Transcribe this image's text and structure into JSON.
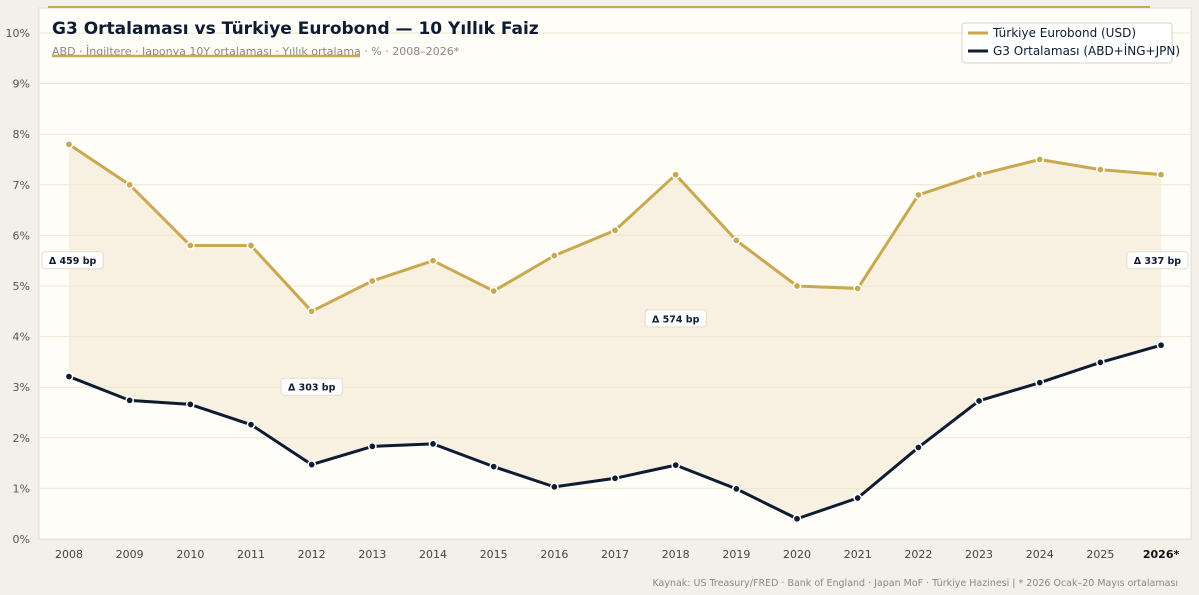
{
  "chart_data": {
    "type": "line",
    "title": "G3 Ortalaması vs Türkiye Eurobond — 10 Yıllık Faiz",
    "subtitle": "ABD · İngiltere · Japonya 10Y ortalaması  ·  Yıllık ortalama  ·  %  ·  2008–2026*",
    "source": "Kaynak: US Treasury/FRED · Bank of England · Japan MoF · Türkiye Hazinesi  |  * 2026 Ocak–20 Mayıs ortalaması",
    "categories": [
      "2008",
      "2009",
      "2010",
      "2011",
      "2012",
      "2013",
      "2014",
      "2015",
      "2016",
      "2017",
      "2018",
      "2019",
      "2020",
      "2021",
      "2022",
      "2023",
      "2024",
      "2025",
      "2026*"
    ],
    "yticks": [
      "0%",
      "1%",
      "2%",
      "3%",
      "4%",
      "5%",
      "6%",
      "7%",
      "8%",
      "9%",
      "10%"
    ],
    "ylim": [
      0,
      10
    ],
    "legend_position": "top-right",
    "grid": true,
    "series": [
      {
        "name": "Türkiye Eurobond (USD)",
        "color": "#c9a94f",
        "values": [
          7.8,
          7.0,
          5.8,
          5.8,
          4.5,
          5.1,
          5.5,
          4.9,
          5.6,
          6.1,
          7.2,
          5.9,
          5.0,
          4.95,
          6.8,
          7.2,
          7.5,
          7.3,
          7.2
        ]
      },
      {
        "name": "G3 Ortalaması (ABD+İNG+JPN)",
        "color": "#0d1b33",
        "values": [
          3.21,
          2.74,
          2.66,
          2.26,
          1.47,
          1.83,
          1.88,
          1.43,
          1.03,
          1.2,
          1.46,
          0.99,
          0.4,
          0.81,
          1.81,
          2.73,
          3.09,
          3.49,
          3.83
        ]
      }
    ],
    "annotations": [
      {
        "text": "Δ 459 bp",
        "category": "2008",
        "y": 5.5
      },
      {
        "text": "Δ 303 bp",
        "category": "2012",
        "y": 3.0
      },
      {
        "text": "Δ 574 bp",
        "category": "2018",
        "y": 4.35
      },
      {
        "text": "Δ 337 bp",
        "category": "2026*",
        "y": 5.5
      }
    ]
  }
}
